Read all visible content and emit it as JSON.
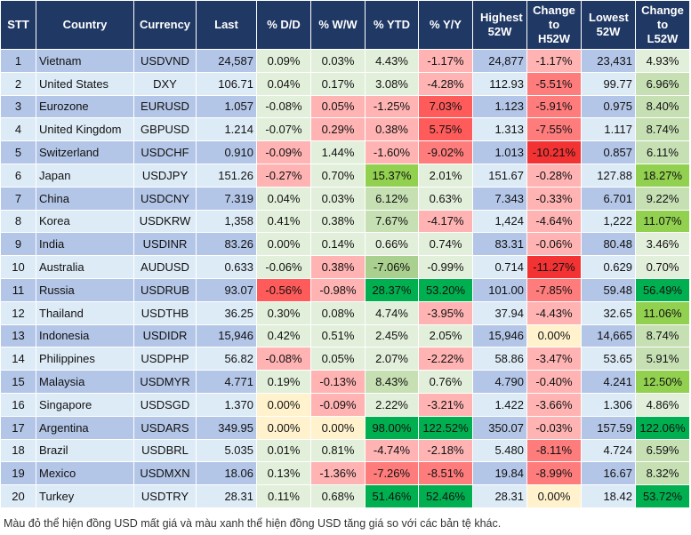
{
  "headers": [
    "STT",
    "Country",
    "Currency",
    "Last",
    "% D/D",
    "% W/W",
    "% YTD",
    "% Y/Y",
    "Highest 52W",
    "Change to H52W",
    "Lowest 52W",
    "Change to L52W"
  ],
  "palette": {
    "header": "#203864",
    "row_odd": "#b4c6e7",
    "row_even": "#ddebf7",
    "light_green": "#e2efda",
    "green": "#c6e0b4",
    "mid_green": "#a9d08e",
    "bright_green": "#92d050",
    "dark_green": "#00b050",
    "yellow": "#fff2cc",
    "light_red": "#ffb3b3",
    "red": "#ff7c7c",
    "strong_red": "#ff5b5b",
    "deep_red": "#f33333"
  },
  "rows": [
    {
      "stt": "1",
      "country": "Vietnam",
      "currency": "USDVND",
      "last": "24,587",
      "dd": "0.09%",
      "ww": "0.03%",
      "ytd": "4.43%",
      "yy": "-1.17%",
      "high": "24,877",
      "ch": "-1.17%",
      "low": "23,431",
      "cl": "4.93%",
      "colors": [
        "#e2efda",
        "#e2efda",
        "#e2efda",
        "#ffb3b3",
        "#ffb3b3",
        "#e2efda"
      ]
    },
    {
      "stt": "2",
      "country": "United States",
      "currency": "DXY",
      "last": "106.71",
      "dd": "0.04%",
      "ww": "0.17%",
      "ytd": "3.08%",
      "yy": "-4.28%",
      "high": "112.93",
      "ch": "-5.51%",
      "low": "99.77",
      "cl": "6.96%",
      "colors": [
        "#e2efda",
        "#e2efda",
        "#e2efda",
        "#ffb3b3",
        "#ff7c7c",
        "#c6e0b4"
      ]
    },
    {
      "stt": "3",
      "country": "Eurozone",
      "currency": "EURUSD",
      "last": "1.057",
      "dd": "-0.08%",
      "ww": "0.05%",
      "ytd": "-1.25%",
      "yy": "7.03%",
      "high": "1.123",
      "ch": "-5.91%",
      "low": "0.975",
      "cl": "8.40%",
      "colors": [
        "#e2efda",
        "#ffb3b3",
        "#ffb3b3",
        "#ff5b5b",
        "#ff7c7c",
        "#c6e0b4"
      ]
    },
    {
      "stt": "4",
      "country": "United Kingdom",
      "currency": "GBPUSD",
      "last": "1.214",
      "dd": "-0.07%",
      "ww": "0.29%",
      "ytd": "0.38%",
      "yy": "5.75%",
      "high": "1.313",
      "ch": "-7.55%",
      "low": "1.117",
      "cl": "8.74%",
      "colors": [
        "#e2efda",
        "#ffb3b3",
        "#ffb3b3",
        "#ff5b5b",
        "#ff7c7c",
        "#c6e0b4"
      ]
    },
    {
      "stt": "5",
      "country": "Switzerland",
      "currency": "USDCHF",
      "last": "0.910",
      "dd": "-0.09%",
      "ww": "1.44%",
      "ytd": "-1.60%",
      "yy": "-9.02%",
      "high": "1.013",
      "ch": "-10.21%",
      "low": "0.857",
      "cl": "6.11%",
      "colors": [
        "#ffb3b3",
        "#e2efda",
        "#ffb3b3",
        "#ff7c7c",
        "#f33333",
        "#c6e0b4"
      ]
    },
    {
      "stt": "6",
      "country": "Japan",
      "currency": "USDJPY",
      "last": "151.26",
      "dd": "-0.27%",
      "ww": "0.70%",
      "ytd": "15.37%",
      "yy": "2.01%",
      "high": "151.67",
      "ch": "-0.28%",
      "low": "127.88",
      "cl": "18.27%",
      "colors": [
        "#ffb3b3",
        "#e2efda",
        "#92d050",
        "#e2efda",
        "#ffb3b3",
        "#92d050"
      ]
    },
    {
      "stt": "7",
      "country": "China",
      "currency": "USDCNY",
      "last": "7.319",
      "dd": "0.04%",
      "ww": "0.03%",
      "ytd": "6.12%",
      "yy": "0.63%",
      "high": "7.343",
      "ch": "-0.33%",
      "low": "6.701",
      "cl": "9.22%",
      "colors": [
        "#e2efda",
        "#e2efda",
        "#c6e0b4",
        "#e2efda",
        "#ffb3b3",
        "#c6e0b4"
      ]
    },
    {
      "stt": "8",
      "country": "Korea",
      "currency": "USDKRW",
      "last": "1,358",
      "dd": "0.41%",
      "ww": "0.38%",
      "ytd": "7.67%",
      "yy": "-4.17%",
      "high": "1,424",
      "ch": "-4.64%",
      "low": "1,222",
      "cl": "11.07%",
      "colors": [
        "#e2efda",
        "#e2efda",
        "#c6e0b4",
        "#ffb3b3",
        "#ffb3b3",
        "#92d050"
      ]
    },
    {
      "stt": "9",
      "country": "India",
      "currency": "USDINR",
      "last": "83.26",
      "dd": "0.00%",
      "ww": "0.14%",
      "ytd": "0.66%",
      "yy": "0.74%",
      "high": "83.31",
      "ch": "-0.06%",
      "low": "80.48",
      "cl": "3.46%",
      "colors": [
        "#e2efda",
        "#e2efda",
        "#e2efda",
        "#e2efda",
        "#ffb3b3",
        "#e2efda"
      ]
    },
    {
      "stt": "10",
      "country": "Australia",
      "currency": "AUDUSD",
      "last": "0.633",
      "dd": "-0.06%",
      "ww": "0.38%",
      "ytd": "-7.06%",
      "yy": "-0.99%",
      "high": "0.714",
      "ch": "-11.27%",
      "low": "0.629",
      "cl": "0.70%",
      "colors": [
        "#e2efda",
        "#ffb3b3",
        "#a9d08e",
        "#e2efda",
        "#f33333",
        "#e2efda"
      ]
    },
    {
      "stt": "11",
      "country": "Russia",
      "currency": "USDRUB",
      "last": "93.07",
      "dd": "-0.56%",
      "ww": "-0.98%",
      "ytd": "28.37%",
      "yy": "53.20%",
      "high": "101.00",
      "ch": "-7.85%",
      "low": "59.48",
      "cl": "56.49%",
      "colors": [
        "#ff5b5b",
        "#ffb3b3",
        "#00b050",
        "#00b050",
        "#ff7c7c",
        "#00b050"
      ]
    },
    {
      "stt": "12",
      "country": "Thailand",
      "currency": "USDTHB",
      "last": "36.25",
      "dd": "0.30%",
      "ww": "0.08%",
      "ytd": "4.74%",
      "yy": "-3.95%",
      "high": "37.94",
      "ch": "-4.43%",
      "low": "32.65",
      "cl": "11.06%",
      "colors": [
        "#e2efda",
        "#e2efda",
        "#e2efda",
        "#ffb3b3",
        "#ffb3b3",
        "#92d050"
      ]
    },
    {
      "stt": "13",
      "country": "Indonesia",
      "currency": "USDIDR",
      "last": "15,946",
      "dd": "0.42%",
      "ww": "0.51%",
      "ytd": "2.45%",
      "yy": "2.05%",
      "high": "15,946",
      "ch": "0.00%",
      "low": "14,665",
      "cl": "8.74%",
      "colors": [
        "#e2efda",
        "#e2efda",
        "#e2efda",
        "#e2efda",
        "#fff2cc",
        "#c6e0b4"
      ]
    },
    {
      "stt": "14",
      "country": "Philippines",
      "currency": "USDPHP",
      "last": "56.82",
      "dd": "-0.08%",
      "ww": "0.05%",
      "ytd": "2.07%",
      "yy": "-2.22%",
      "high": "58.86",
      "ch": "-3.47%",
      "low": "53.65",
      "cl": "5.91%",
      "colors": [
        "#ffb3b3",
        "#e2efda",
        "#e2efda",
        "#ffb3b3",
        "#ffb3b3",
        "#c6e0b4"
      ]
    },
    {
      "stt": "15",
      "country": "Malaysia",
      "currency": "USDMYR",
      "last": "4.771",
      "dd": "0.19%",
      "ww": "-0.13%",
      "ytd": "8.43%",
      "yy": "0.76%",
      "high": "4.790",
      "ch": "-0.40%",
      "low": "4.241",
      "cl": "12.50%",
      "colors": [
        "#e2efda",
        "#ffb3b3",
        "#c6e0b4",
        "#e2efda",
        "#ffb3b3",
        "#92d050"
      ]
    },
    {
      "stt": "16",
      "country": "Singapore",
      "currency": "USDSGD",
      "last": "1.370",
      "dd": "0.00%",
      "ww": "-0.09%",
      "ytd": "2.22%",
      "yy": "-3.21%",
      "high": "1.422",
      "ch": "-3.66%",
      "low": "1.306",
      "cl": "4.86%",
      "colors": [
        "#fff2cc",
        "#ffb3b3",
        "#e2efda",
        "#ffb3b3",
        "#ffb3b3",
        "#e2efda"
      ]
    },
    {
      "stt": "17",
      "country": "Argentina",
      "currency": "USDARS",
      "last": "349.95",
      "dd": "0.00%",
      "ww": "0.00%",
      "ytd": "98.00%",
      "yy": "122.52%",
      "high": "350.07",
      "ch": "-0.03%",
      "low": "157.59",
      "cl": "122.06%",
      "colors": [
        "#fff2cc",
        "#fff2cc",
        "#00b050",
        "#00b050",
        "#ffb3b3",
        "#00b050"
      ]
    },
    {
      "stt": "18",
      "country": "Brazil",
      "currency": "USDBRL",
      "last": "5.035",
      "dd": "0.01%",
      "ww": "0.81%",
      "ytd": "-4.74%",
      "yy": "-2.18%",
      "high": "5.480",
      "ch": "-8.11%",
      "low": "4.724",
      "cl": "6.59%",
      "colors": [
        "#e2efda",
        "#e2efda",
        "#ffb3b3",
        "#ffb3b3",
        "#ff7c7c",
        "#c6e0b4"
      ]
    },
    {
      "stt": "19",
      "country": "Mexico",
      "currency": "USDMXN",
      "last": "18.06",
      "dd": "0.13%",
      "ww": "-1.36%",
      "ytd": "-7.26%",
      "yy": "-8.51%",
      "high": "19.84",
      "ch": "-8.99%",
      "low": "16.67",
      "cl": "8.32%",
      "colors": [
        "#e2efda",
        "#ffb3b3",
        "#ff7c7c",
        "#ff7c7c",
        "#ff7c7c",
        "#c6e0b4"
      ]
    },
    {
      "stt": "20",
      "country": "Turkey",
      "currency": "USDTRY",
      "last": "28.31",
      "dd": "0.11%",
      "ww": "0.68%",
      "ytd": "51.46%",
      "yy": "52.46%",
      "high": "28.31",
      "ch": "0.00%",
      "low": "18.42",
      "cl": "53.72%",
      "colors": [
        "#e2efda",
        "#e2efda",
        "#00b050",
        "#00b050",
        "#fff2cc",
        "#00b050"
      ]
    }
  ],
  "footnote": "Màu đỏ thể hiện đồng USD mất giá và màu xanh thể hiện đồng USD tăng giá so với các bản tệ khác."
}
